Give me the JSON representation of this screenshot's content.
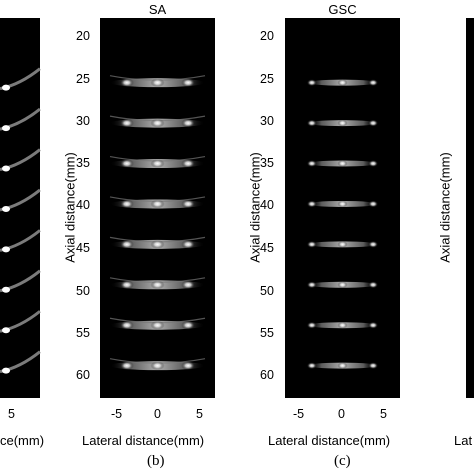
{
  "figure": {
    "panels": [
      {
        "id": "a",
        "title": "",
        "caption": "",
        "x_ticks_visible": [
          "5"
        ],
        "xlabel_partial": "ce(mm)"
      },
      {
        "id": "b",
        "title": "SA",
        "caption": "(b)",
        "ylabel": "Axial distance(mm)",
        "xlabel": "Lateral distance(mm)",
        "y_ticks": [
          "20",
          "25",
          "30",
          "35",
          "40",
          "45",
          "50",
          "55",
          "60"
        ],
        "x_ticks": [
          "-5",
          "0",
          "5"
        ]
      },
      {
        "id": "c",
        "title": "GSC",
        "caption": "(c)",
        "ylabel": "Axial distance(mm)",
        "xlabel": "Lateral distance(mm)",
        "y_ticks": [
          "20",
          "25",
          "30",
          "35",
          "40",
          "45",
          "50",
          "55",
          "60"
        ],
        "x_ticks": [
          "-5",
          "0",
          "5"
        ]
      },
      {
        "id": "d",
        "title": "",
        "caption": "",
        "xlabel_partial": "Lat"
      }
    ]
  },
  "chart_data": {
    "type": "heatmap",
    "colormap": "gray",
    "xlim": [
      -7.5,
      7.5
    ],
    "ylim": [
      17,
      64
    ],
    "point_targets_axial_mm": [
      25,
      30,
      35,
      40,
      45,
      50,
      55,
      60
    ],
    "point_targets_lateral_mm": [
      -4,
      0,
      4
    ]
  }
}
